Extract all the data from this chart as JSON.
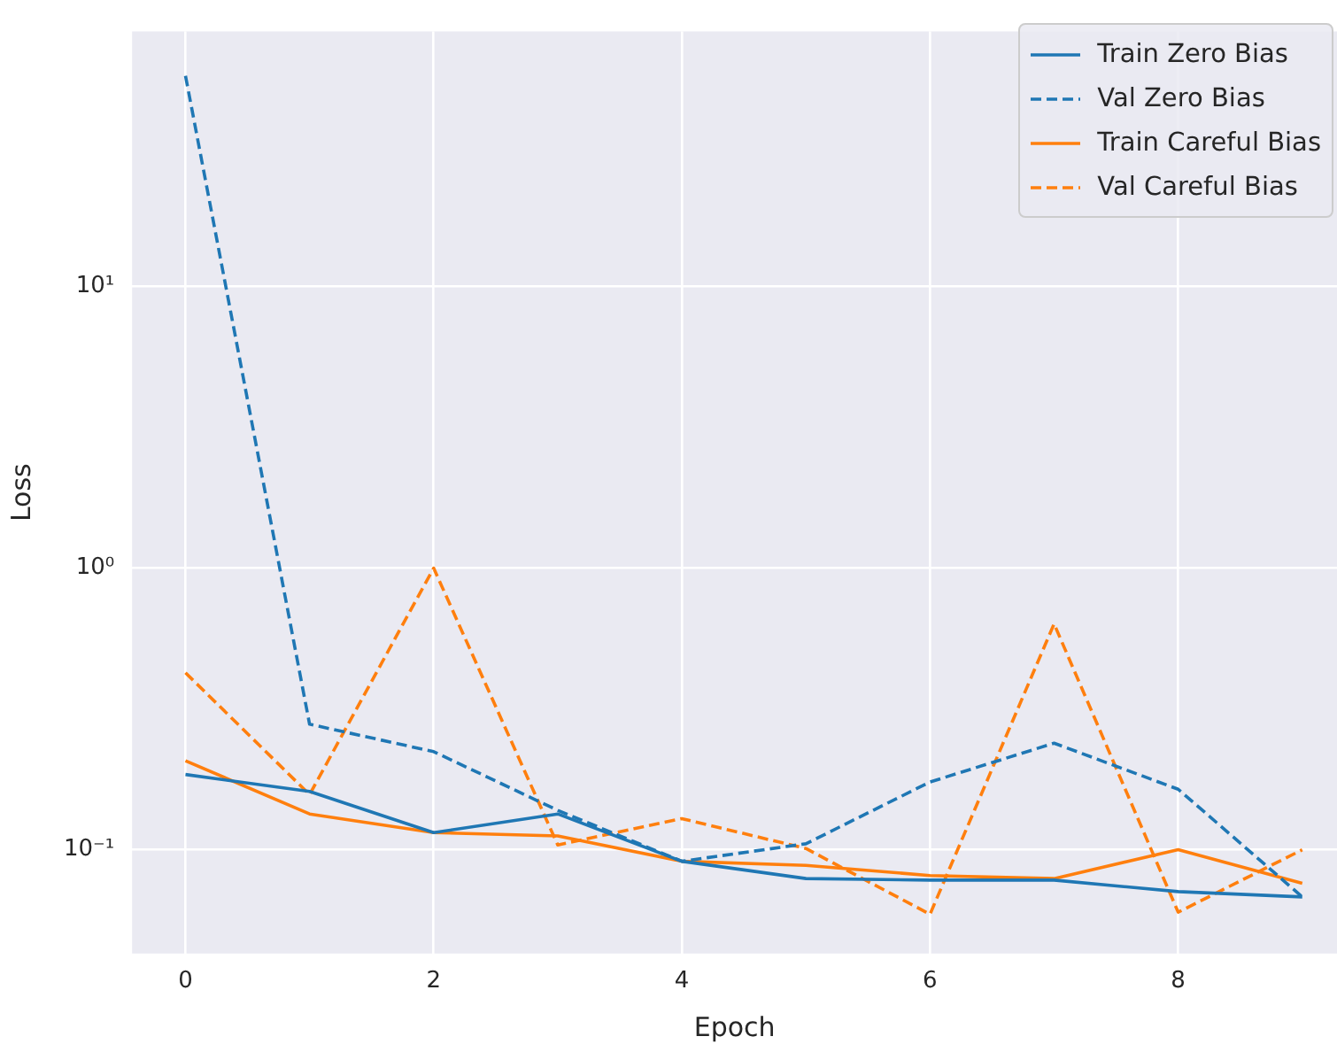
{
  "chart_data": {
    "type": "line",
    "xlabel": "Epoch",
    "ylabel": "Loss",
    "log": "y",
    "grid": true,
    "legend": "top right",
    "marker": "none",
    "x": [
      0,
      1,
      2,
      3,
      4,
      5,
      6,
      7,
      8,
      9
    ],
    "xlim": [
      -0.43,
      9.28
    ],
    "xticks": [
      0,
      2,
      4,
      6,
      8
    ],
    "ylim": [
      0.0428,
      80.4
    ],
    "yticks": [
      {
        "value": 0.1,
        "label": "10⁻¹"
      },
      {
        "value": 1,
        "label": "10⁰"
      },
      {
        "value": 10,
        "label": "10¹"
      }
    ],
    "series": [
      {
        "name": "Train Zero Bias",
        "color": "#1f77b4",
        "line_style": "solid",
        "values": [
          0.185,
          0.161,
          0.115,
          0.134,
          0.091,
          0.079,
          0.078,
          0.078,
          0.071,
          0.068
        ]
      },
      {
        "name": "Val Zero Bias",
        "color": "#1f77b4",
        "line_style": "dashed",
        "values": [
          56,
          0.279,
          0.223,
          0.138,
          0.091,
          0.105,
          0.174,
          0.239,
          0.164,
          0.068
        ]
      },
      {
        "name": "Train Careful Bias",
        "color": "#ff7f0e",
        "line_style": "solid",
        "values": [
          0.207,
          0.134,
          0.115,
          0.112,
          0.091,
          0.088,
          0.081,
          0.079,
          0.1,
          0.076
        ]
      },
      {
        "name": "Val Careful Bias",
        "color": "#ff7f0e",
        "line_style": "dashed",
        "values": [
          0.425,
          0.157,
          1.0,
          0.104,
          0.129,
          0.101,
          0.059,
          0.634,
          0.06,
          0.1
        ]
      }
    ]
  }
}
